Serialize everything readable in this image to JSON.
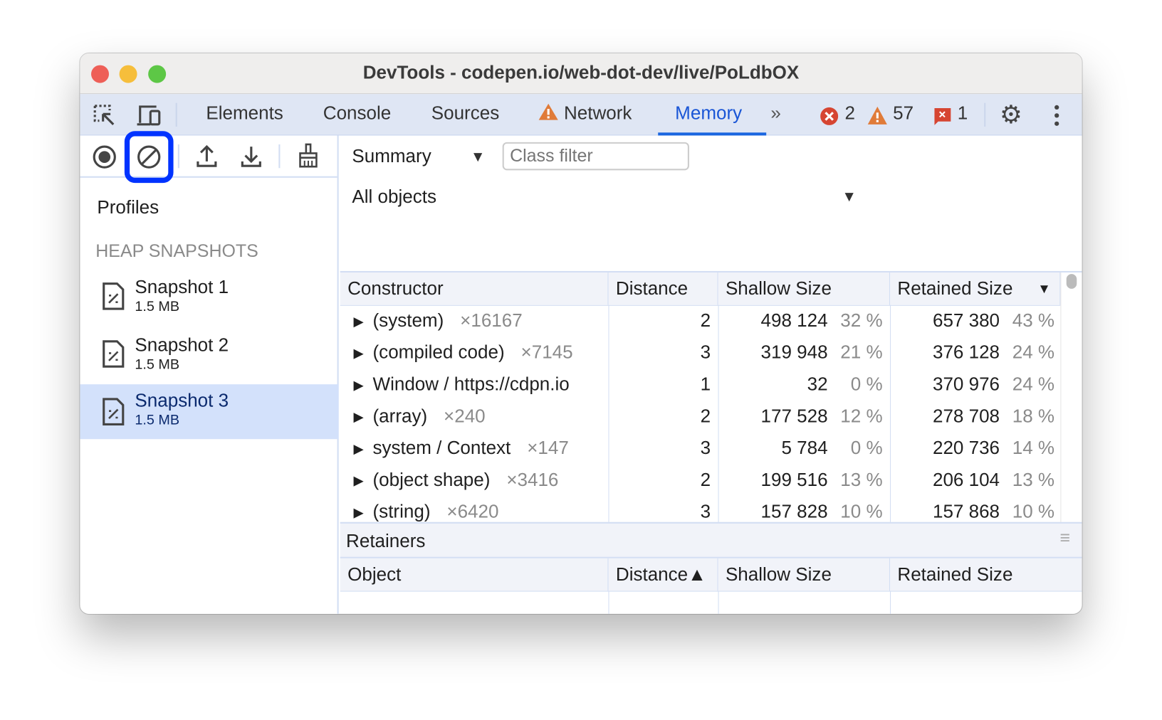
{
  "window": {
    "title": "DevTools - codepen.io/web-dot-dev/live/PoLdbOX"
  },
  "tabs": [
    {
      "label": "Elements"
    },
    {
      "label": "Console"
    },
    {
      "label": "Sources"
    },
    {
      "label": "Network",
      "warning": true
    },
    {
      "label": "Memory",
      "active": true
    }
  ],
  "status": {
    "errors": "2",
    "warnings": "57",
    "issues": "1"
  },
  "colors": {
    "accent": "#1a56d6",
    "highlight": "#0033ff",
    "selected": "#d3e1fb",
    "warning": "#e07b39",
    "error": "#d64532"
  },
  "toolbar": {
    "view": "Summary",
    "filter_placeholder": "Class filter",
    "objects": "All objects"
  },
  "sidebar": {
    "profiles": "Profiles",
    "section": "HEAP SNAPSHOTS",
    "snapshots": [
      {
        "name": "Snapshot 1",
        "size": "1.5 MB"
      },
      {
        "name": "Snapshot 2",
        "size": "1.5 MB"
      },
      {
        "name": "Snapshot 3",
        "size": "1.5 MB",
        "selected": true
      }
    ]
  },
  "table": {
    "headers": [
      "Constructor",
      "Distance",
      "Shallow Size",
      "Retained Size"
    ],
    "rows": [
      {
        "name": "(system)",
        "count": "×16167",
        "distance": "2",
        "shallow": "498 124",
        "shallow_pct": "32 %",
        "retained": "657 380",
        "retained_pct": "43 %"
      },
      {
        "name": "(compiled code)",
        "count": "×7145",
        "distance": "3",
        "shallow": "319 948",
        "shallow_pct": "21 %",
        "retained": "376 128",
        "retained_pct": "24 %"
      },
      {
        "name": "Window / https://cdpn.io",
        "count": "",
        "distance": "1",
        "shallow": "32",
        "shallow_pct": "0 %",
        "retained": "370 976",
        "retained_pct": "24 %"
      },
      {
        "name": "(array)",
        "count": "×240",
        "distance": "2",
        "shallow": "177 528",
        "shallow_pct": "12 %",
        "retained": "278 708",
        "retained_pct": "18 %"
      },
      {
        "name": "system / Context",
        "count": "×147",
        "distance": "3",
        "shallow": "5 784",
        "shallow_pct": "0 %",
        "retained": "220 736",
        "retained_pct": "14 %"
      },
      {
        "name": "(object shape)",
        "count": "×3416",
        "distance": "2",
        "shallow": "199 516",
        "shallow_pct": "13 %",
        "retained": "206 104",
        "retained_pct": "13 %"
      },
      {
        "name": "(string)",
        "count": "×6420",
        "distance": "3",
        "shallow": "157 828",
        "shallow_pct": "10 %",
        "retained": "157 868",
        "retained_pct": "10 %"
      }
    ]
  },
  "retainers": {
    "title": "Retainers",
    "headers": [
      "Object",
      "Distance▲",
      "Shallow Size",
      "Retained Size"
    ]
  }
}
